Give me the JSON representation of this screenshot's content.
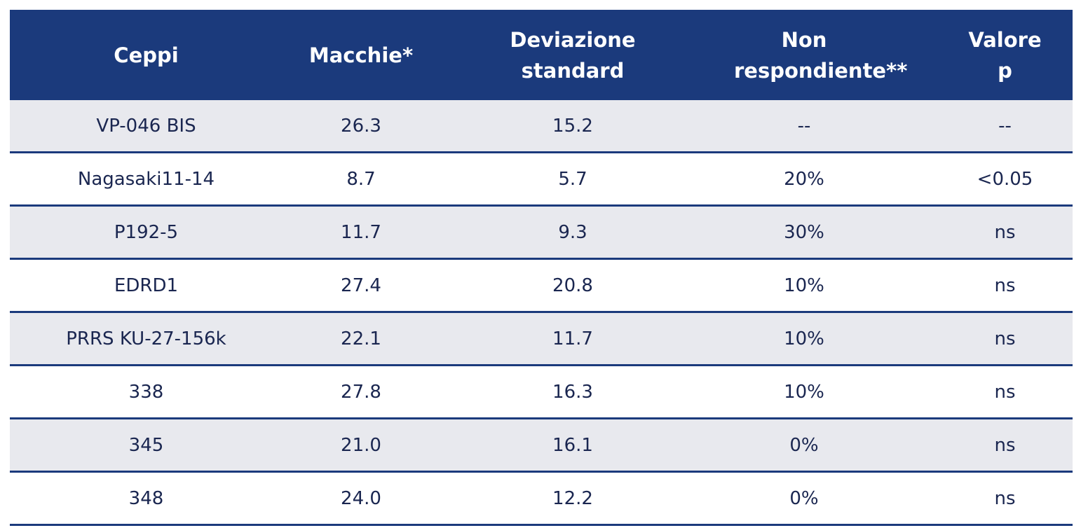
{
  "table": {
    "header": [
      "Ceppi",
      "Macchie*",
      "Deviazione standard",
      "Non respondiente**",
      "Valore p"
    ],
    "rows": [
      [
        "VP-046 BIS",
        "26.3",
        "15.2",
        "--",
        "--"
      ],
      [
        "Nagasaki11-14",
        "8.7",
        "5.7",
        "20%",
        "<0.05"
      ],
      [
        "P192-5",
        "11.7",
        "9.3",
        "30%",
        "ns"
      ],
      [
        "EDRD1",
        "27.4",
        "20.8",
        "10%",
        "ns"
      ],
      [
        "PRRS KU-27-156k",
        "22.1",
        "11.7",
        "10%",
        "ns"
      ],
      [
        "338",
        "27.8",
        "16.3",
        "10%",
        "ns"
      ],
      [
        "345",
        "21.0",
        "16.1",
        "0%",
        "ns"
      ],
      [
        "348",
        "24.0",
        "12.2",
        "0%",
        "ns"
      ]
    ]
  }
}
